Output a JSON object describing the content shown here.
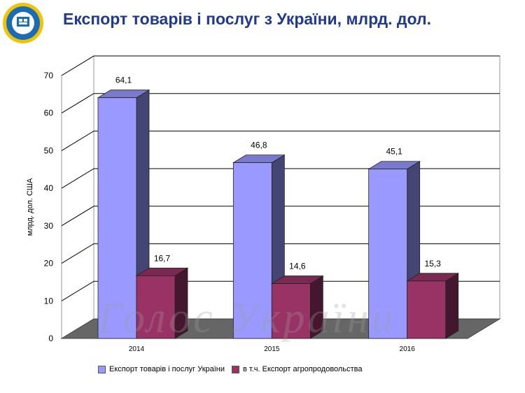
{
  "title": "Експорт товарів і послуг з України, млрд. дол.",
  "logo": {
    "icon": "university-seal-icon",
    "color": "#1a6bb8",
    "ring": "#f2c300"
  },
  "watermark": "Голос України",
  "chart_data": {
    "type": "bar",
    "title": "Експорт товарів і послуг з України, млрд. дол.",
    "ylabel": "млрд. дол. США",
    "xlabel": "",
    "categories": [
      "2014",
      "2015",
      "2016"
    ],
    "ylim": [
      0,
      70
    ],
    "yticks": [
      "0",
      "10",
      "20",
      "30",
      "40",
      "50",
      "60",
      "70"
    ],
    "grid": true,
    "legend_position": "bottom",
    "series": [
      {
        "name": "Експорт товарів і послуг України",
        "values": [
          64.1,
          46.8,
          45.1
        ],
        "labels": [
          "64,1",
          "46,8",
          "45,1"
        ],
        "color": "#9999ff"
      },
      {
        "name": "в т.ч. Експорт агропродовольства",
        "values": [
          16.7,
          14.6,
          15.3
        ],
        "labels": [
          "16,7",
          "14,6",
          "15,3"
        ],
        "color": "#993366"
      }
    ]
  }
}
